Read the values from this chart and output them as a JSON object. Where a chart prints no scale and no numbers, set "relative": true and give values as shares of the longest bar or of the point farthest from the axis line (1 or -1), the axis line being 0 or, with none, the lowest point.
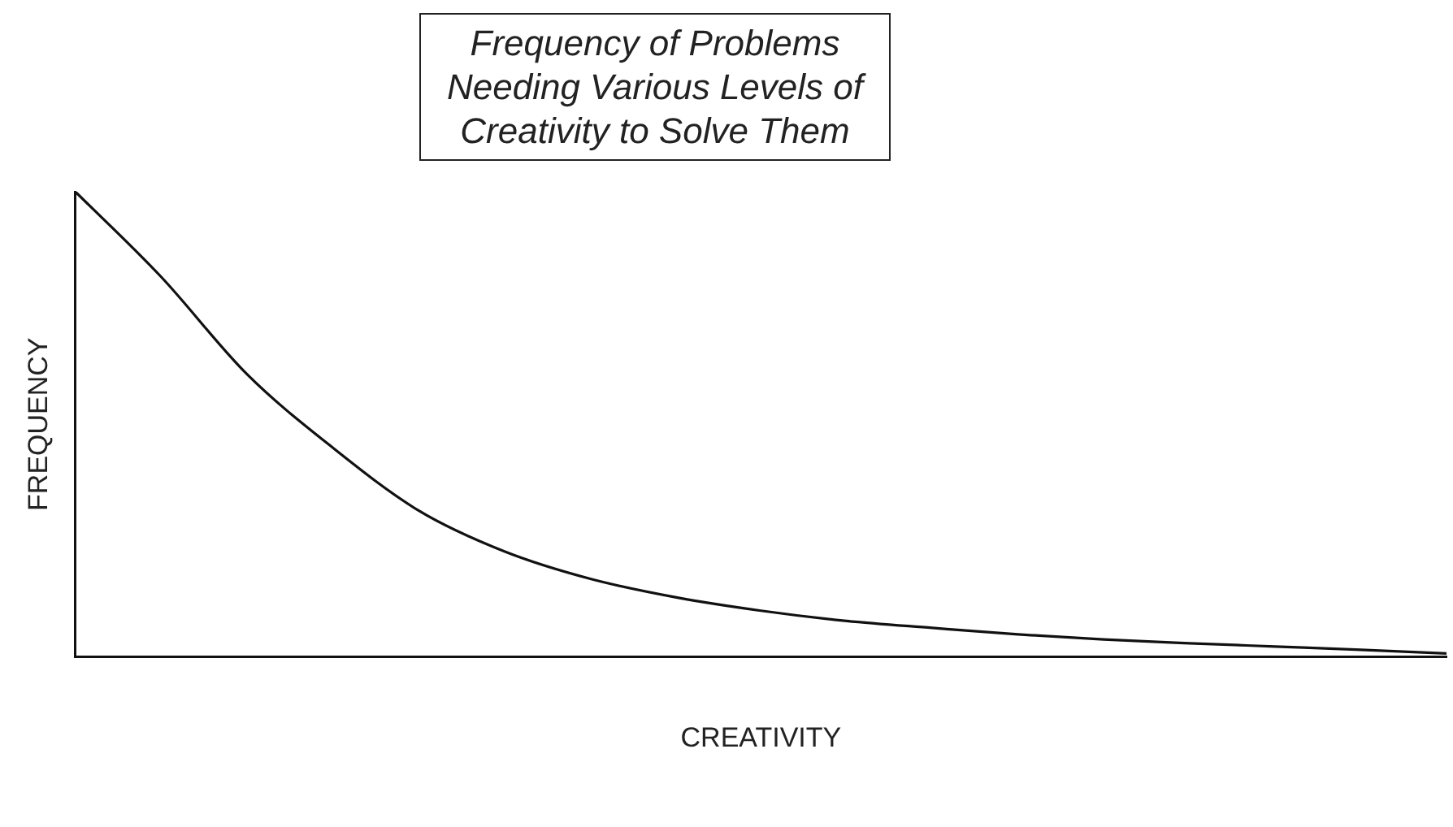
{
  "chart_data": {
    "type": "line",
    "title": "Frequency of Problems Needing Various Levels of Creativity to Solve Them",
    "xlabel": "CREATIVITY",
    "ylabel": "FREQUENCY",
    "relative": true,
    "categories": [
      null,
      null,
      null,
      null,
      null,
      null,
      null,
      null,
      null,
      null,
      null,
      null,
      null,
      null,
      null,
      null,
      null
    ],
    "series": [
      {
        "color": "#111111",
        "values": [
          1,
          0.817,
          0.608,
          0.45,
          0.315,
          0.227,
          0.168,
          0.128,
          0.099,
          0.077,
          0.062,
          0.048,
          0.037,
          0.029,
          0.022,
          0.015,
          0.007
        ]
      }
    ],
    "grid": false,
    "legend": false,
    "marker": "none",
    "line_style": "solid"
  }
}
